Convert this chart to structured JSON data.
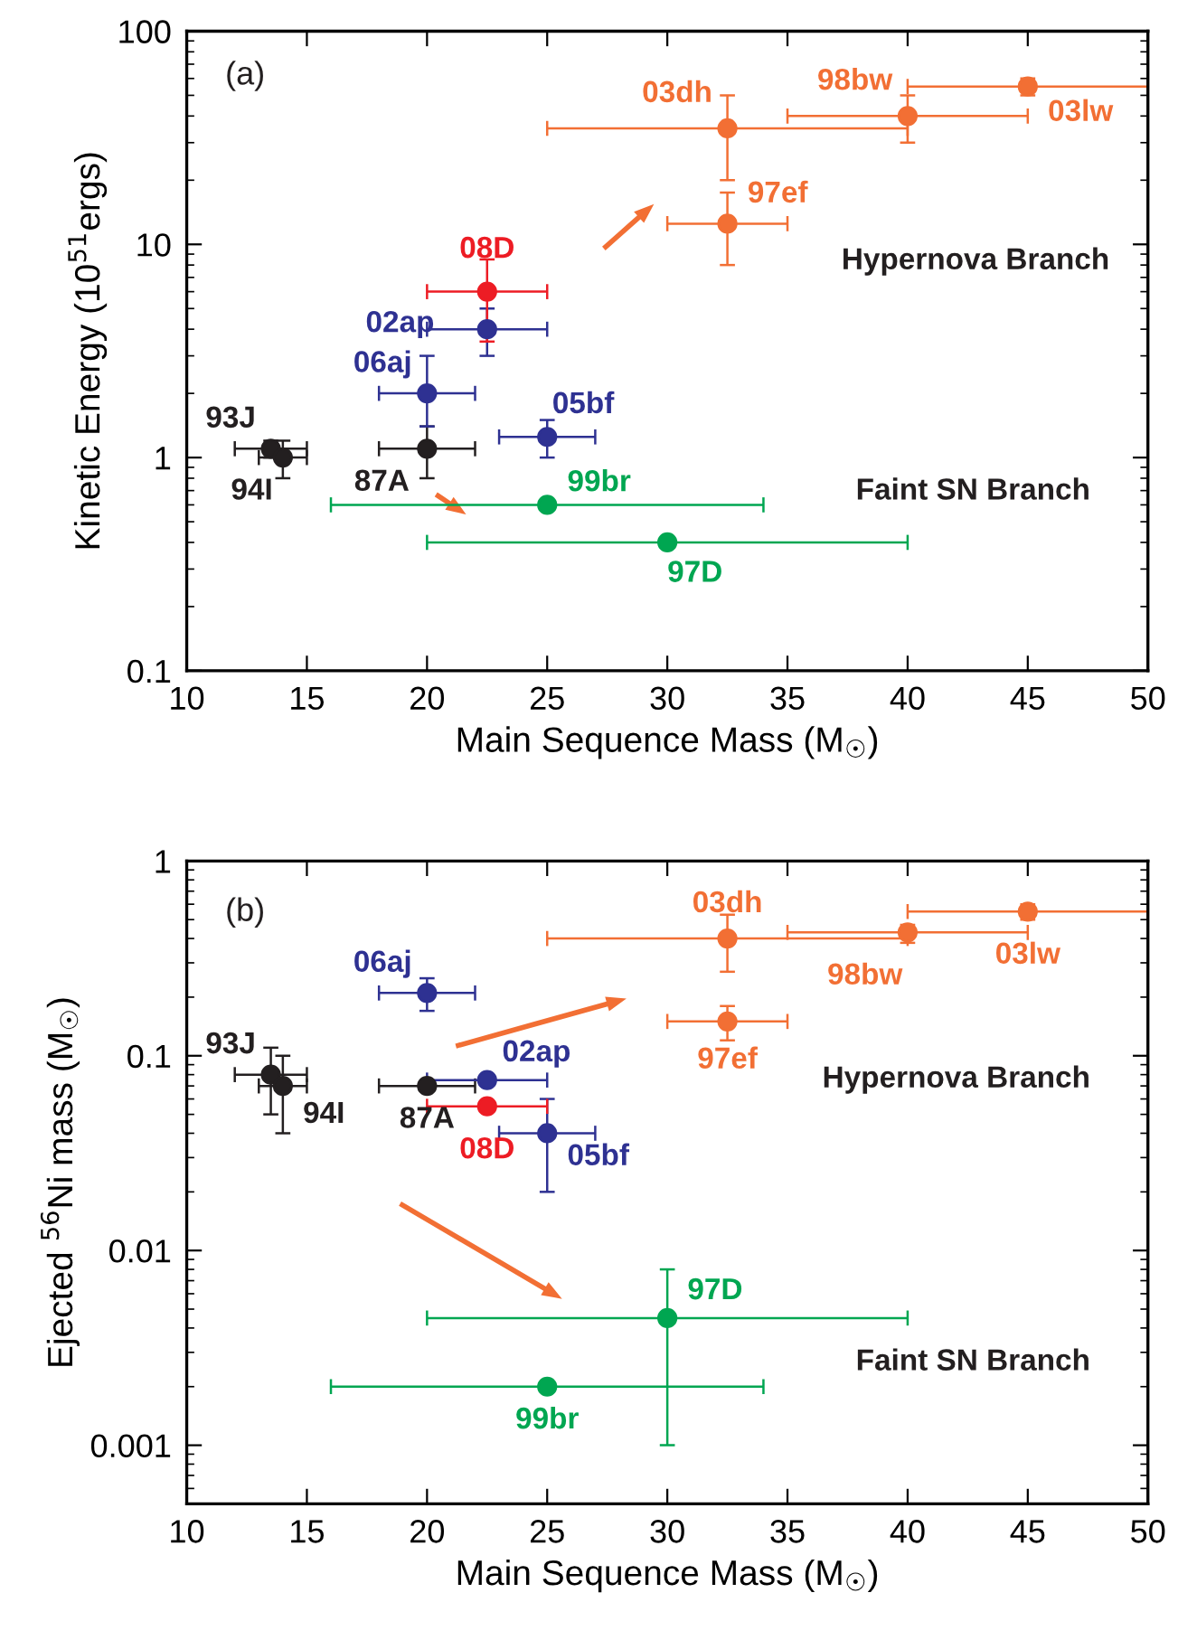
{
  "chart_data": [
    {
      "type": "scatter",
      "xlabel": "Main Sequence Mass (M$_{☉}$)",
      "ylabel": "Kinetic Energy (10$^{51}$ergs)",
      "log": "y",
      "xlim": [
        10,
        50
      ],
      "xticks": [
        10,
        15,
        20,
        25,
        30,
        35,
        40,
        45,
        50
      ],
      "ylim": [
        0.1,
        100
      ],
      "yticks": [
        0.1,
        1,
        10,
        100
      ],
      "marker": "circle",
      "grid": false,
      "legend": false,
      "annotations": [
        "(a)",
        "Hypernova Branch",
        "Faint SN Branch"
      ],
      "series": [
        {
          "name": "93J",
          "color": "#231f20",
          "x": [
            13.5
          ],
          "values": [
            1.1
          ],
          "xerrors": [
            [
              12,
              15
            ]
          ],
          "errors": [
            [
              1.0,
              1.2
            ]
          ]
        },
        {
          "name": "94I",
          "color": "#231f20",
          "x": [
            14
          ],
          "values": [
            1.0
          ],
          "xerrors": [
            [
              13,
              15
            ]
          ],
          "errors": [
            [
              0.8,
              1.2
            ]
          ]
        },
        {
          "name": "87A",
          "color": "#231f20",
          "x": [
            20
          ],
          "values": [
            1.1
          ],
          "xerrors": [
            [
              18,
              22
            ]
          ],
          "errors": [
            [
              0.8,
              1.4
            ]
          ]
        },
        {
          "name": "06aj",
          "color": "#2e3192",
          "x": [
            20
          ],
          "values": [
            2
          ],
          "xerrors": [
            [
              18,
              22
            ]
          ],
          "errors": [
            [
              1.4,
              3
            ]
          ]
        },
        {
          "name": "05bf",
          "color": "#2e3192",
          "x": [
            25
          ],
          "values": [
            1.25
          ],
          "xerrors": [
            [
              23,
              27
            ]
          ],
          "errors": [
            [
              1.0,
              1.5
            ]
          ]
        },
        {
          "name": "02ap",
          "color": "#2e3192",
          "x": [
            22.5
          ],
          "values": [
            4
          ],
          "xerrors": [
            [
              20,
              25
            ]
          ],
          "errors": [
            [
              3,
              5
            ]
          ]
        },
        {
          "name": "08D",
          "color": "#ed1c24",
          "x": [
            22.5
          ],
          "values": [
            6
          ],
          "xerrors": [
            [
              20,
              25
            ]
          ],
          "errors": [
            [
              3.5,
              8.5
            ]
          ]
        },
        {
          "name": "03dh",
          "color": "#f26f34",
          "x": [
            32.5
          ],
          "values": [
            35
          ],
          "xerrors": [
            [
              25,
              40
            ]
          ],
          "errors": [
            [
              20,
              50
            ]
          ]
        },
        {
          "name": "98bw",
          "color": "#f26f34",
          "x": [
            40
          ],
          "values": [
            40
          ],
          "xerrors": [
            [
              35,
              45
            ]
          ],
          "errors": [
            [
              30,
              50
            ]
          ]
        },
        {
          "name": "03lw",
          "color": "#f26f34",
          "x": [
            45
          ],
          "values": [
            55
          ],
          "xerrors": [
            [
              40,
              50
            ]
          ],
          "errors": [
            [
              50,
              60
            ]
          ]
        },
        {
          "name": "97ef",
          "color": "#f26f34",
          "x": [
            32.5
          ],
          "values": [
            12.5
          ],
          "xerrors": [
            [
              30,
              35
            ]
          ],
          "errors": [
            [
              8,
              17.5
            ]
          ]
        },
        {
          "name": "99br",
          "color": "#00a651",
          "x": [
            25
          ],
          "values": [
            0.6
          ],
          "xerrors": [
            [
              16,
              34
            ]
          ],
          "errors": [
            null
          ]
        },
        {
          "name": "97D",
          "color": "#00a651",
          "x": [
            30
          ],
          "values": [
            0.4
          ],
          "xerrors": [
            [
              20,
              40
            ]
          ],
          "errors": [
            null
          ]
        }
      ]
    },
    {
      "type": "scatter",
      "xlabel": "Main Sequence Mass (M$_{☉}$)",
      "ylabel": "Ejected $^{56}$Ni mass (M$_{☉}$)",
      "log": "y",
      "xlim": [
        10,
        50
      ],
      "xticks": [
        10,
        15,
        20,
        25,
        30,
        35,
        40,
        45,
        50
      ],
      "ylim": [
        0.0005,
        1
      ],
      "yticks": [
        0.001,
        0.01,
        0.1,
        1
      ],
      "marker": "circle",
      "grid": false,
      "legend": false,
      "annotations": [
        "(b)",
        "Hypernova Branch",
        "Faint SN Branch"
      ],
      "series": [
        {
          "name": "93J",
          "color": "#231f20",
          "x": [
            13.5
          ],
          "values": [
            0.08
          ],
          "xerrors": [
            [
              12,
              15
            ]
          ],
          "errors": [
            [
              0.05,
              0.11
            ]
          ]
        },
        {
          "name": "94I",
          "color": "#231f20",
          "x": [
            14
          ],
          "values": [
            0.07
          ],
          "xerrors": [
            [
              13,
              15
            ]
          ],
          "errors": [
            [
              0.04,
              0.1
            ]
          ]
        },
        {
          "name": "87A",
          "color": "#231f20",
          "x": [
            20
          ],
          "values": [
            0.07
          ],
          "xerrors": [
            [
              18,
              22
            ]
          ],
          "errors": [
            null
          ]
        },
        {
          "name": "06aj",
          "color": "#2e3192",
          "x": [
            20
          ],
          "values": [
            0.21
          ],
          "xerrors": [
            [
              18,
              22
            ]
          ],
          "errors": [
            [
              0.17,
              0.25
            ]
          ]
        },
        {
          "name": "05bf",
          "color": "#2e3192",
          "x": [
            25
          ],
          "values": [
            0.04
          ],
          "xerrors": [
            [
              23,
              27
            ]
          ],
          "errors": [
            [
              0.02,
              0.06
            ]
          ]
        },
        {
          "name": "02ap",
          "color": "#2e3192",
          "x": [
            22.5
          ],
          "values": [
            0.075
          ],
          "xerrors": [
            [
              20,
              25
            ]
          ],
          "errors": [
            null
          ]
        },
        {
          "name": "08D",
          "color": "#ed1c24",
          "x": [
            22.5
          ],
          "values": [
            0.055
          ],
          "xerrors": [
            [
              20,
              25
            ]
          ],
          "errors": [
            null
          ]
        },
        {
          "name": "03dh",
          "color": "#f26f34",
          "x": [
            32.5
          ],
          "values": [
            0.4
          ],
          "xerrors": [
            [
              25,
              40
            ]
          ],
          "errors": [
            [
              0.27,
              0.53
            ]
          ]
        },
        {
          "name": "98bw",
          "color": "#f26f34",
          "x": [
            40
          ],
          "values": [
            0.43
          ],
          "xerrors": [
            [
              35,
              45
            ]
          ],
          "errors": [
            [
              0.38,
              0.47
            ]
          ]
        },
        {
          "name": "03lw",
          "color": "#f26f34",
          "x": [
            45
          ],
          "values": [
            0.55
          ],
          "xerrors": [
            [
              40,
              50
            ]
          ],
          "errors": [
            [
              0.5,
              0.6
            ]
          ]
        },
        {
          "name": "97ef",
          "color": "#f26f34",
          "x": [
            32.5
          ],
          "values": [
            0.15
          ],
          "xerrors": [
            [
              30,
              35
            ]
          ],
          "errors": [
            [
              0.12,
              0.18
            ]
          ]
        },
        {
          "name": "99br",
          "color": "#00a651",
          "x": [
            25
          ],
          "values": [
            0.002
          ],
          "xerrors": [
            [
              16,
              34
            ]
          ],
          "errors": [
            null
          ]
        },
        {
          "name": "97D",
          "color": "#00a651",
          "x": [
            30
          ],
          "values": [
            0.0045
          ],
          "xerrors": [
            [
              20,
              40
            ]
          ],
          "errors": [
            [
              0.001,
              0.008
            ]
          ]
        }
      ]
    }
  ]
}
